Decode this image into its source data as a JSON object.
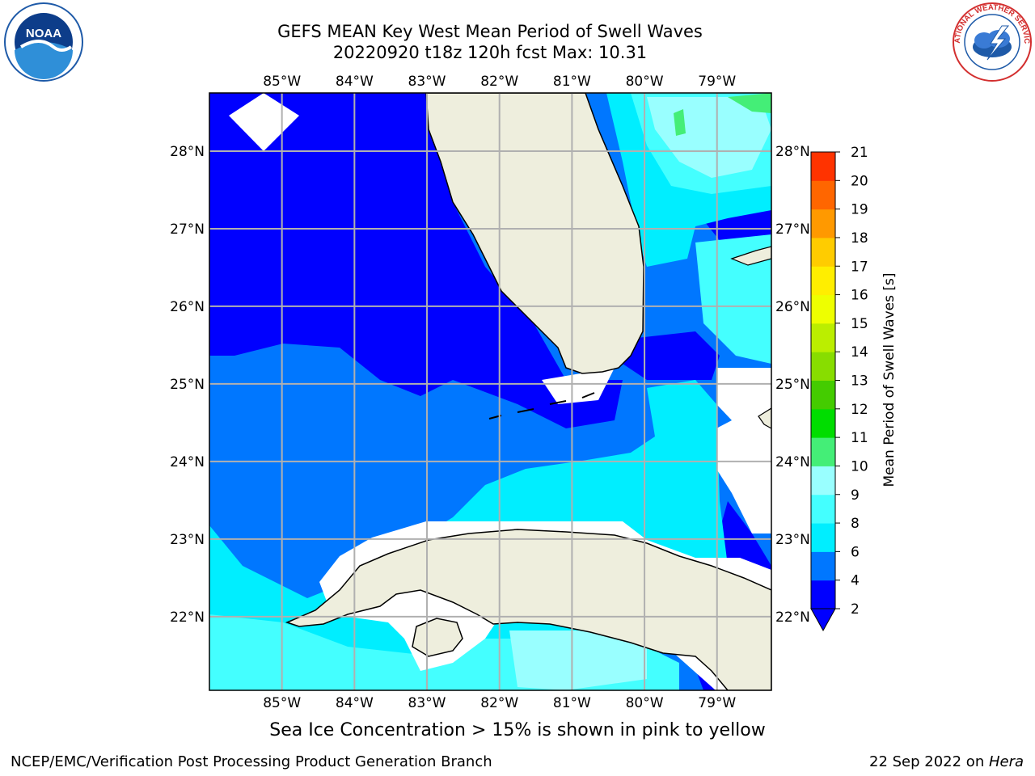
{
  "title": {
    "line1": "GEFS MEAN Key West Mean Period of Swell Waves",
    "line2": "20220920 t18z 120h fcst   Max: 10.31"
  },
  "logos": {
    "left": {
      "name": "noaa-logo",
      "text": "NOAA",
      "ring_text": "NATIONAL OCEANIC AND ATMOSPHERIC ADMINISTRATION · U.S. DEPARTMENT OF COMMERCE"
    },
    "right": {
      "name": "nws-logo",
      "ring_text": "NATIONAL WEATHER SERVICE"
    }
  },
  "map": {
    "lon_labels": [
      "85°W",
      "84°W",
      "83°W",
      "82°W",
      "81°W",
      "80°W",
      "79°W"
    ],
    "lat_labels": [
      "28°N",
      "27°N",
      "26°N",
      "25°N",
      "24°N",
      "23°N",
      "22°N"
    ],
    "lon_range": [
      -86.0,
      -78.25
    ],
    "lat_range": [
      21.05,
      28.75
    ],
    "land_color": "#eeeedd",
    "grid_color": "#b0b0b0"
  },
  "colorbar": {
    "label": "Mean Period of Swell Waves [s]",
    "ticks": [
      "21",
      "20",
      "19",
      "18",
      "17",
      "16",
      "15",
      "14",
      "13",
      "12",
      "11",
      "10",
      "9",
      "8",
      "6",
      "4",
      "2"
    ],
    "levels": [
      2,
      4,
      6,
      8,
      9,
      10,
      11,
      12,
      13,
      14,
      15,
      16,
      17,
      18,
      19,
      20,
      21
    ],
    "colors": [
      "#0000ff",
      "#0077ff",
      "#00eeff",
      "#44ffff",
      "#99ffff",
      "#44ee77",
      "#00dd00",
      "#44cc00",
      "#88dd00",
      "#bbee00",
      "#eeff00",
      "#ffee00",
      "#ffcc00",
      "#ff9900",
      "#ff6600",
      "#ff3300",
      "#ff0000"
    ],
    "extend": "min"
  },
  "footer": {
    "note": "Sea Ice Concentration > 15% is shown in pink to yellow",
    "credit": "NCEP/EMC/Verification Post Processing Product Generation Branch",
    "date": "22 Sep 2022 on ",
    "machine": "Hera"
  }
}
